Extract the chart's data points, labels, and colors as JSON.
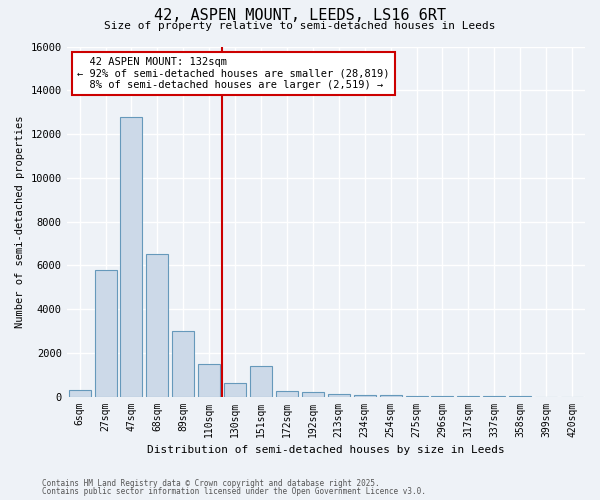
{
  "title_line1": "42, ASPEN MOUNT, LEEDS, LS16 6RT",
  "title_line2": "Size of property relative to semi-detached houses in Leeds",
  "xlabel": "Distribution of semi-detached houses by size in Leeds",
  "ylabel": "Number of semi-detached properties",
  "categories": [
    "6sqm",
    "27sqm",
    "47sqm",
    "68sqm",
    "89sqm",
    "110sqm",
    "130sqm",
    "151sqm",
    "172sqm",
    "192sqm",
    "213sqm",
    "234sqm",
    "254sqm",
    "275sqm",
    "296sqm",
    "317sqm",
    "337sqm",
    "358sqm",
    "399sqm",
    "420sqm"
  ],
  "values": [
    300,
    5800,
    12800,
    6500,
    3000,
    1500,
    600,
    1400,
    250,
    200,
    130,
    80,
    50,
    30,
    20,
    10,
    5,
    3,
    2,
    1
  ],
  "bar_color": "#ccd9e8",
  "bar_edge_color": "#6699bb",
  "property_bar_index": 6,
  "property_label": "42 ASPEN MOUNT: 132sqm",
  "pct_smaller": 92,
  "pct_larger": 8,
  "count_smaller": 28819,
  "count_larger": 2519,
  "vline_color": "#cc0000",
  "annotation_box_edge": "#cc0000",
  "ylim": [
    0,
    16000
  ],
  "yticks": [
    0,
    2000,
    4000,
    6000,
    8000,
    10000,
    12000,
    14000,
    16000
  ],
  "footer_line1": "Contains HM Land Registry data © Crown copyright and database right 2025.",
  "footer_line2": "Contains public sector information licensed under the Open Government Licence v3.0.",
  "bg_color": "#eef2f7",
  "grid_color": "#ffffff"
}
